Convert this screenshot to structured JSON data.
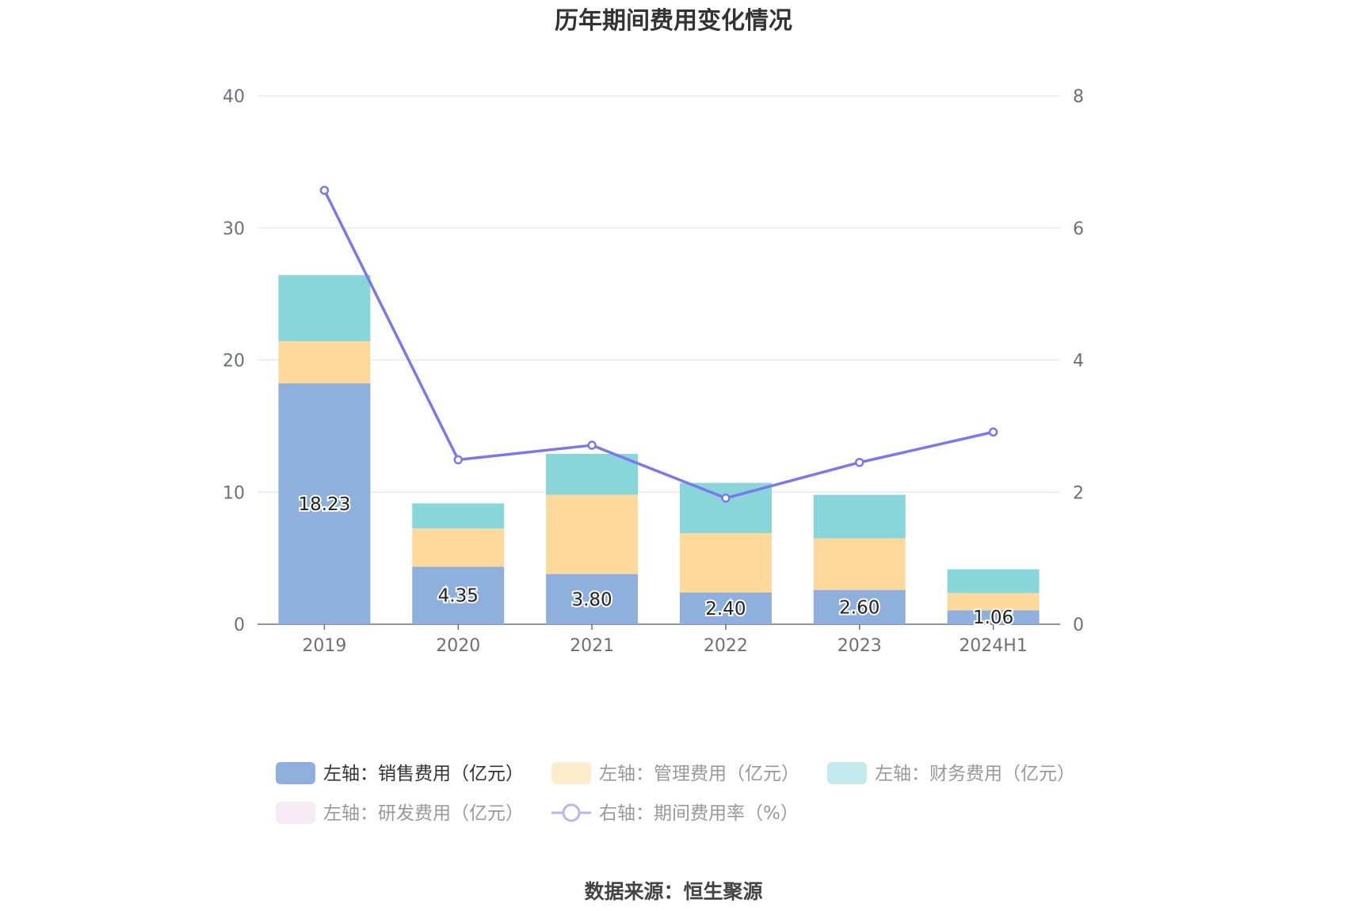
{
  "chart_data": {
    "type": "bar",
    "title": "历年期间费用变化情况",
    "categories": [
      "2019",
      "2020",
      "2021",
      "2022",
      "2023",
      "2024H1"
    ],
    "left_axis": {
      "ylim": [
        0,
        40
      ],
      "ticks": [
        "0",
        "10",
        "20",
        "30",
        "40"
      ]
    },
    "right_axis": {
      "ylim": [
        0,
        8
      ],
      "ticks": [
        "0",
        "2",
        "4",
        "6",
        "8"
      ]
    },
    "grid": true,
    "legend_position": "bottom",
    "series": [
      {
        "name": "左轴：销售费用（亿元）",
        "type": "bar",
        "axis": "left",
        "stack": "total",
        "color": "#8fafdc",
        "values": [
          18.23,
          4.35,
          3.8,
          2.4,
          2.6,
          1.06
        ],
        "labels": [
          "18.23",
          "4.35",
          "3.80",
          "2.40",
          "2.60",
          "1.06"
        ]
      },
      {
        "name": "左轴：管理费用（亿元）",
        "type": "bar",
        "axis": "left",
        "stack": "total",
        "color": "#ffd99b",
        "values": [
          3.2,
          2.9,
          6.0,
          4.5,
          3.9,
          1.3
        ]
      },
      {
        "name": "左轴：财务费用（亿元）",
        "type": "bar",
        "axis": "left",
        "stack": "total",
        "color": "#88d6d9",
        "values": [
          5.0,
          1.9,
          3.1,
          3.8,
          3.3,
          1.8
        ]
      },
      {
        "name": "左轴：研发费用（亿元）",
        "type": "bar",
        "axis": "left",
        "stack": "total",
        "color": "#f0d9ec",
        "values": [
          0,
          0,
          0,
          0,
          0,
          0
        ]
      },
      {
        "name": "右轴：期间费用率（%）",
        "type": "line",
        "axis": "right",
        "color": "#7b78ec",
        "values": [
          6.57,
          2.49,
          2.71,
          1.91,
          2.45,
          2.91
        ]
      }
    ],
    "source": "数据来源：恒生聚源"
  }
}
